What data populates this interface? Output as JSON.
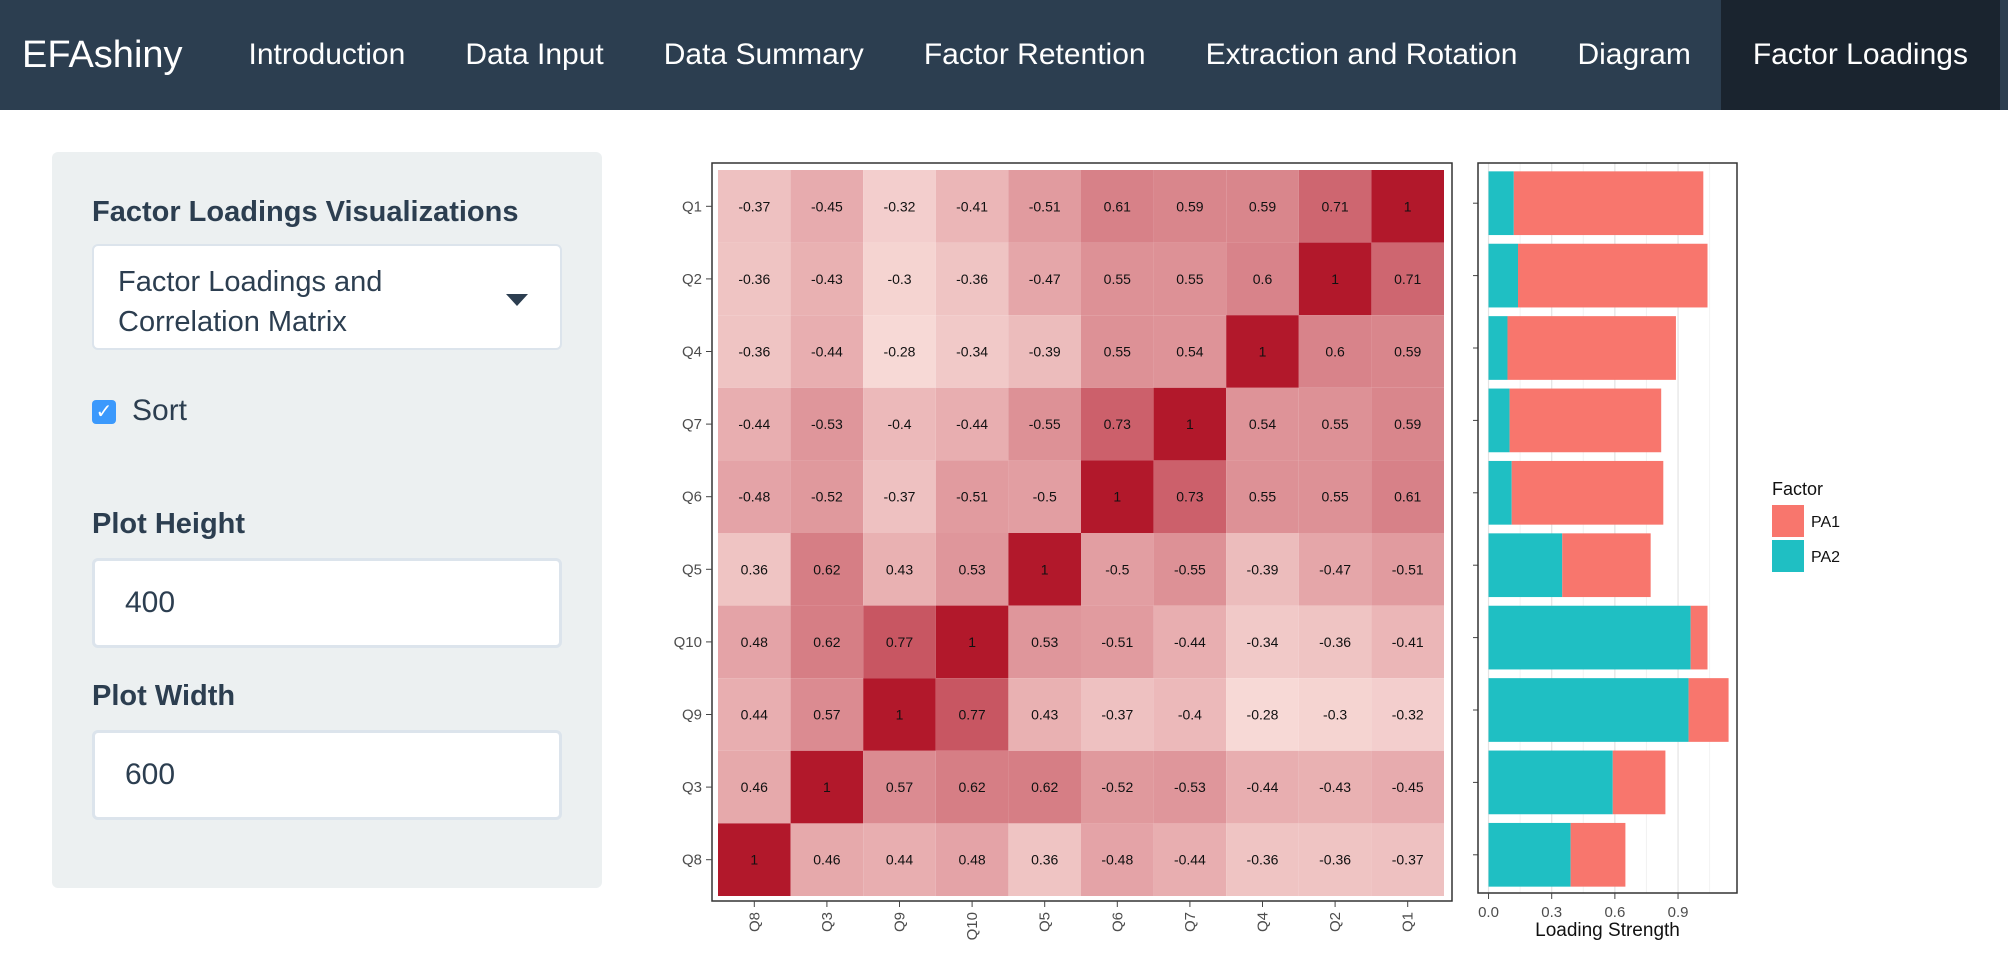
{
  "navbar": {
    "brand": "EFAshiny",
    "tabs": [
      {
        "label": "Introduction"
      },
      {
        "label": "Data Input"
      },
      {
        "label": "Data Summary"
      },
      {
        "label": "Factor Retention"
      },
      {
        "label": "Extraction and Rotation"
      },
      {
        "label": "Diagram"
      },
      {
        "label": "Factor Loadings"
      }
    ],
    "active_tab": "Factor Loadings"
  },
  "sidebar": {
    "viz_label": "Factor Loadings Visualizations",
    "viz_selected": "Factor Loadings and Correlation Matrix",
    "sort_label": "Sort",
    "sort_checked": true,
    "height_label": "Plot Height",
    "height_value": "400",
    "width_label": "Plot Width",
    "width_value": "600"
  },
  "chart_data": [
    {
      "type": "heatmap",
      "x_categories": [
        "Q8",
        "Q3",
        "Q9",
        "Q10",
        "Q5",
        "Q6",
        "Q7",
        "Q4",
        "Q2",
        "Q1"
      ],
      "y_categories": [
        "Q1",
        "Q2",
        "Q4",
        "Q7",
        "Q6",
        "Q5",
        "Q10",
        "Q9",
        "Q3",
        "Q8"
      ],
      "values": [
        [
          -0.37,
          -0.45,
          -0.32,
          -0.41,
          -0.51,
          0.61,
          0.59,
          0.59,
          0.71,
          1
        ],
        [
          -0.36,
          -0.43,
          -0.3,
          -0.36,
          -0.47,
          0.55,
          0.55,
          0.6,
          1,
          0.71
        ],
        [
          -0.36,
          -0.44,
          -0.28,
          -0.34,
          -0.39,
          0.55,
          0.54,
          1,
          0.6,
          0.59
        ],
        [
          -0.44,
          -0.53,
          -0.4,
          -0.44,
          -0.55,
          0.73,
          1,
          0.54,
          0.55,
          0.59
        ],
        [
          -0.48,
          -0.52,
          -0.37,
          -0.51,
          -0.5,
          1,
          0.73,
          0.55,
          0.55,
          0.61
        ],
        [
          0.36,
          0.62,
          0.43,
          0.53,
          1,
          -0.5,
          -0.55,
          -0.39,
          -0.47,
          -0.51
        ],
        [
          0.48,
          0.62,
          0.77,
          1,
          0.53,
          -0.51,
          -0.44,
          -0.34,
          -0.36,
          -0.41
        ],
        [
          0.44,
          0.57,
          1,
          0.77,
          0.43,
          -0.37,
          -0.4,
          -0.28,
          -0.3,
          -0.32
        ],
        [
          0.46,
          1,
          0.57,
          0.62,
          0.62,
          -0.52,
          -0.53,
          -0.44,
          -0.43,
          -0.45
        ],
        [
          1,
          0.46,
          0.44,
          0.48,
          0.36,
          -0.48,
          -0.44,
          -0.36,
          -0.36,
          -0.37
        ]
      ],
      "color_low": "#f7d9d6",
      "color_high": "#b2182b",
      "grid": false
    },
    {
      "type": "bar",
      "orientation": "horizontal",
      "stacked": true,
      "categories": [
        "Q1",
        "Q2",
        "Q4",
        "Q7",
        "Q6",
        "Q5",
        "Q10",
        "Q9",
        "Q3",
        "Q8"
      ],
      "series": [
        {
          "name": "PA2",
          "color": "#1fbfc3",
          "values": [
            0.12,
            0.14,
            0.09,
            0.1,
            0.11,
            0.35,
            0.96,
            0.95,
            0.59,
            0.39
          ]
        },
        {
          "name": "PA1",
          "color": "#f8766d",
          "values": [
            0.9,
            0.9,
            0.8,
            0.72,
            0.72,
            0.42,
            0.08,
            0.19,
            0.25,
            0.26
          ]
        }
      ],
      "xlabel": "Loading Strength",
      "x_ticks": [
        0.0,
        0.3,
        0.6,
        0.9
      ],
      "xlim": [
        -0.05,
        1.18
      ],
      "grid": true,
      "legend": {
        "title": "Factor",
        "entries": [
          "PA1",
          "PA2"
        ],
        "placement": "right"
      }
    }
  ]
}
